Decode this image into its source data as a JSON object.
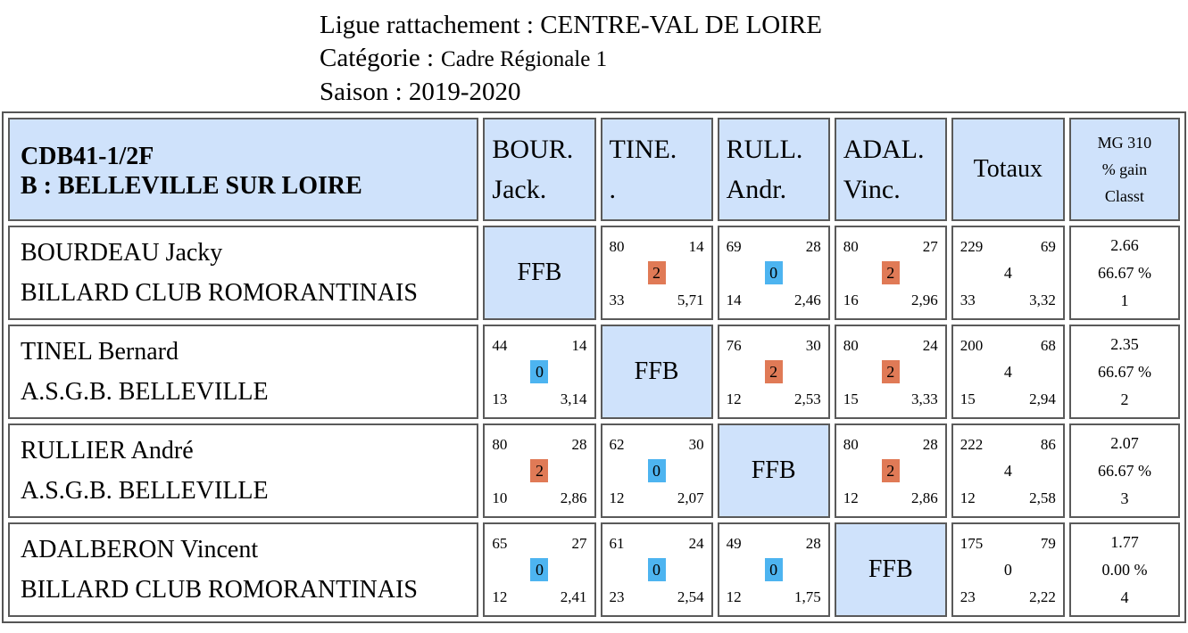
{
  "header": {
    "ligue": "Ligue rattachement : CENTRE-VAL DE LOIRE",
    "categorie_label": "Catégorie :",
    "categorie_value": "Cadre Régionale 1",
    "saison": "Saison : 2019-2020"
  },
  "table": {
    "team_code": "CDB41-1/2F",
    "team_name": "B : BELLEVILLE SUR LOIRE",
    "columns": [
      {
        "line1": "BOUR.",
        "line2": "Jack."
      },
      {
        "line1": "TINE.",
        "line2": "."
      },
      {
        "line1": "RULL.",
        "line2": "Andr."
      },
      {
        "line1": "ADAL.",
        "line2": "Vinc."
      }
    ],
    "totaux_label": "Totaux",
    "mg_header": {
      "line1": "MG 310",
      "line2": "% gain",
      "line3": "Classt"
    },
    "ffb_label": "FFB",
    "rows": [
      {
        "name": "BOURDEAU Jacky",
        "club": "BILLARD CLUB ROMORANTINAIS",
        "cells": [
          null,
          {
            "tl": "80",
            "tr": "14",
            "mid": "2",
            "bl": "33",
            "br": "5,71",
            "result": "win"
          },
          {
            "tl": "69",
            "tr": "28",
            "mid": "0",
            "bl": "14",
            "br": "2,46",
            "result": "loss"
          },
          {
            "tl": "80",
            "tr": "27",
            "mid": "2",
            "bl": "16",
            "br": "2,96",
            "result": "win"
          }
        ],
        "totaux": {
          "tl": "229",
          "tr": "69",
          "mid": "4",
          "bl": "33",
          "br": "3,32"
        },
        "mg": {
          "avg": "2.66",
          "pct": "66.67 %",
          "rank": "1"
        }
      },
      {
        "name": "TINEL Bernard",
        "club": "A.S.G.B. BELLEVILLE",
        "cells": [
          {
            "tl": "44",
            "tr": "14",
            "mid": "0",
            "bl": "13",
            "br": "3,14",
            "result": "loss"
          },
          null,
          {
            "tl": "76",
            "tr": "30",
            "mid": "2",
            "bl": "12",
            "br": "2,53",
            "result": "win"
          },
          {
            "tl": "80",
            "tr": "24",
            "mid": "2",
            "bl": "15",
            "br": "3,33",
            "result": "win"
          }
        ],
        "totaux": {
          "tl": "200",
          "tr": "68",
          "mid": "4",
          "bl": "15",
          "br": "2,94"
        },
        "mg": {
          "avg": "2.35",
          "pct": "66.67 %",
          "rank": "2"
        }
      },
      {
        "name": "RULLIER André",
        "club": "A.S.G.B. BELLEVILLE",
        "cells": [
          {
            "tl": "80",
            "tr": "28",
            "mid": "2",
            "bl": "10",
            "br": "2,86",
            "result": "win"
          },
          {
            "tl": "62",
            "tr": "30",
            "mid": "0",
            "bl": "12",
            "br": "2,07",
            "result": "loss"
          },
          null,
          {
            "tl": "80",
            "tr": "28",
            "mid": "2",
            "bl": "12",
            "br": "2,86",
            "result": "win"
          }
        ],
        "totaux": {
          "tl": "222",
          "tr": "86",
          "mid": "4",
          "bl": "12",
          "br": "2,58"
        },
        "mg": {
          "avg": "2.07",
          "pct": "66.67 %",
          "rank": "3"
        }
      },
      {
        "name": "ADALBERON Vincent",
        "club": "BILLARD CLUB ROMORANTINAIS",
        "cells": [
          {
            "tl": "65",
            "tr": "27",
            "mid": "0",
            "bl": "12",
            "br": "2,41",
            "result": "loss"
          },
          {
            "tl": "61",
            "tr": "24",
            "mid": "0",
            "bl": "23",
            "br": "2,54",
            "result": "loss"
          },
          {
            "tl": "49",
            "tr": "28",
            "mid": "0",
            "bl": "12",
            "br": "1,75",
            "result": "loss"
          },
          null
        ],
        "totaux": {
          "tl": "175",
          "tr": "79",
          "mid": "0",
          "bl": "23",
          "br": "2,22"
        },
        "mg": {
          "avg": "1.77",
          "pct": "0.00 %",
          "rank": "4"
        }
      }
    ]
  },
  "colors": {
    "win": "#e07a56",
    "loss": "#4db4f0",
    "header_bg": "#cfe2fb"
  }
}
